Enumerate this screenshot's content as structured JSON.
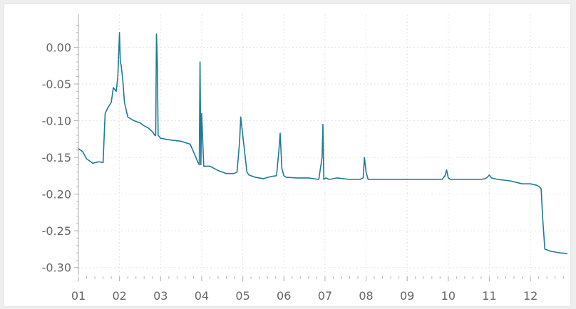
{
  "chart_data": {
    "type": "line",
    "title": "",
    "xlabel": "",
    "ylabel": "",
    "x_ticks": [
      "01",
      "02",
      "03",
      "04",
      "05",
      "06",
      "07",
      "08",
      "09",
      "10",
      "11",
      "12"
    ],
    "y_ticks": [
      "0.00",
      "-0.05",
      "-0.10",
      "-0.15",
      "-0.20",
      "-0.25",
      "-0.30"
    ],
    "y_tick_values": [
      0.0,
      -0.05,
      -0.1,
      -0.15,
      -0.2,
      -0.25,
      -0.3
    ],
    "xlim": [
      1,
      12.9
    ],
    "ylim": [
      -0.31,
      0.045
    ],
    "grid": true,
    "series": [
      {
        "color": "#1f7a99",
        "x": [
          1.0,
          1.1,
          1.2,
          1.35,
          1.5,
          1.6,
          1.65,
          1.72,
          1.8,
          1.85,
          1.92,
          1.96,
          2.0,
          2.02,
          2.04,
          2.08,
          2.12,
          2.2,
          2.35,
          2.5,
          2.6,
          2.7,
          2.8,
          2.86,
          2.88,
          2.9,
          2.92,
          2.94,
          3.0,
          3.2,
          3.5,
          3.72,
          3.82,
          3.92,
          3.94,
          3.96,
          3.98,
          4.0,
          4.05,
          4.2,
          4.4,
          4.6,
          4.78,
          4.86,
          4.92,
          4.95,
          4.98,
          5.02,
          5.1,
          5.15,
          5.3,
          5.5,
          5.7,
          5.82,
          5.88,
          5.91,
          5.95,
          6.0,
          6.05,
          6.3,
          6.6,
          6.85,
          6.93,
          6.95,
          6.97,
          7.02,
          7.1,
          7.3,
          7.6,
          7.85,
          7.93,
          7.96,
          8.0,
          8.05,
          8.1,
          8.5,
          9.0,
          9.5,
          9.85,
          9.92,
          9.96,
          10.0,
          10.05,
          10.4,
          10.8,
          10.9,
          10.95,
          11.0,
          11.05,
          11.2,
          11.5,
          11.8,
          12.0,
          12.15,
          12.22,
          12.26,
          12.3,
          12.35,
          12.5,
          12.7,
          12.9
        ],
        "y": [
          -0.138,
          -0.142,
          -0.152,
          -0.158,
          -0.156,
          -0.157,
          -0.09,
          -0.082,
          -0.075,
          -0.055,
          -0.06,
          -0.04,
          0.02,
          -0.02,
          -0.025,
          -0.045,
          -0.075,
          -0.095,
          -0.1,
          -0.103,
          -0.107,
          -0.11,
          -0.115,
          -0.12,
          -0.12,
          0.018,
          -0.02,
          -0.12,
          -0.124,
          -0.126,
          -0.128,
          -0.132,
          -0.145,
          -0.158,
          -0.16,
          -0.02,
          -0.16,
          -0.09,
          -0.162,
          -0.162,
          -0.168,
          -0.172,
          -0.172,
          -0.17,
          -0.13,
          -0.095,
          -0.11,
          -0.13,
          -0.17,
          -0.174,
          -0.177,
          -0.179,
          -0.176,
          -0.175,
          -0.14,
          -0.117,
          -0.165,
          -0.175,
          -0.177,
          -0.178,
          -0.178,
          -0.18,
          -0.15,
          -0.105,
          -0.18,
          -0.178,
          -0.18,
          -0.178,
          -0.18,
          -0.18,
          -0.178,
          -0.15,
          -0.17,
          -0.18,
          -0.18,
          -0.18,
          -0.18,
          -0.18,
          -0.18,
          -0.175,
          -0.167,
          -0.178,
          -0.18,
          -0.18,
          -0.18,
          -0.179,
          -0.177,
          -0.174,
          -0.178,
          -0.18,
          -0.182,
          -0.186,
          -0.186,
          -0.188,
          -0.19,
          -0.193,
          -0.235,
          -0.275,
          -0.278,
          -0.28,
          -0.281
        ]
      }
    ]
  }
}
